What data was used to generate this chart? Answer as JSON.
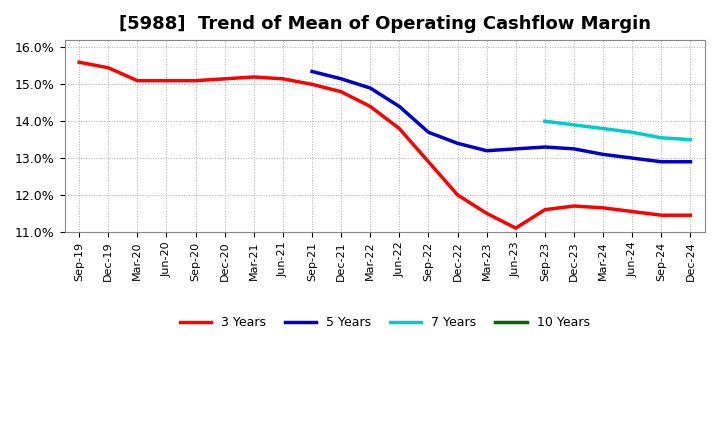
{
  "title": "[5988]  Trend of Mean of Operating Cashflow Margin",
  "title_fontsize": 13,
  "ylim": [
    0.11,
    0.162
  ],
  "yticks": [
    0.11,
    0.12,
    0.13,
    0.14,
    0.15,
    0.16
  ],
  "ytick_labels": [
    "11.0%",
    "12.0%",
    "13.0%",
    "14.0%",
    "15.0%",
    "16.0%"
  ],
  "background_color": "#ffffff",
  "plot_bg_color": "#ffffff",
  "grid_color": "#aaaaaa",
  "xtick_labels": [
    "Sep-19",
    "Dec-19",
    "Mar-20",
    "Jun-20",
    "Sep-20",
    "Dec-20",
    "Mar-21",
    "Jun-21",
    "Sep-21",
    "Dec-21",
    "Mar-22",
    "Jun-22",
    "Sep-22",
    "Dec-22",
    "Mar-23",
    "Jun-23",
    "Sep-23",
    "Dec-23",
    "Mar-24",
    "Jun-24",
    "Sep-24",
    "Dec-24"
  ],
  "series": {
    "3yr": {
      "color": "#ff0000",
      "label": "3 Years",
      "x": [
        "Sep-19",
        "Dec-19",
        "Mar-20",
        "Jun-20",
        "Sep-20",
        "Dec-20",
        "Mar-21",
        "Jun-21",
        "Sep-21",
        "Dec-21",
        "Mar-22",
        "Jun-22",
        "Sep-22",
        "Dec-22",
        "Mar-23",
        "Jun-23",
        "Sep-23",
        "Dec-23",
        "Mar-24",
        "Jun-24",
        "Sep-24",
        "Dec-24"
      ],
      "y": [
        0.156,
        0.1545,
        0.151,
        0.151,
        0.151,
        0.1515,
        0.152,
        0.1515,
        0.15,
        0.148,
        0.144,
        0.138,
        0.129,
        0.12,
        0.115,
        0.111,
        0.116,
        0.117,
        0.1165,
        0.1155,
        0.1145,
        0.1145
      ]
    },
    "5yr": {
      "color": "#0000cc",
      "label": "5 Years",
      "x": [
        "Sep-21",
        "Dec-21",
        "Mar-22",
        "Jun-22",
        "Sep-22",
        "Dec-22",
        "Mar-23",
        "Jun-23",
        "Sep-23",
        "Dec-23",
        "Mar-24",
        "Jun-24",
        "Sep-24",
        "Dec-24"
      ],
      "y": [
        0.1535,
        0.1515,
        0.149,
        0.144,
        0.137,
        0.134,
        0.132,
        0.1325,
        0.133,
        0.1325,
        0.131,
        0.13,
        0.129,
        0.129
      ]
    },
    "7yr": {
      "color": "#00cccc",
      "label": "7 Years",
      "x": [
        "Sep-23",
        "Dec-23",
        "Mar-24",
        "Jun-24",
        "Sep-24",
        "Dec-24"
      ],
      "y": [
        0.14,
        0.139,
        0.138,
        0.137,
        0.1355,
        0.135
      ]
    },
    "10yr": {
      "color": "#006600",
      "label": "10 Years",
      "x": [],
      "y": []
    }
  },
  "linewidth": 2.5
}
